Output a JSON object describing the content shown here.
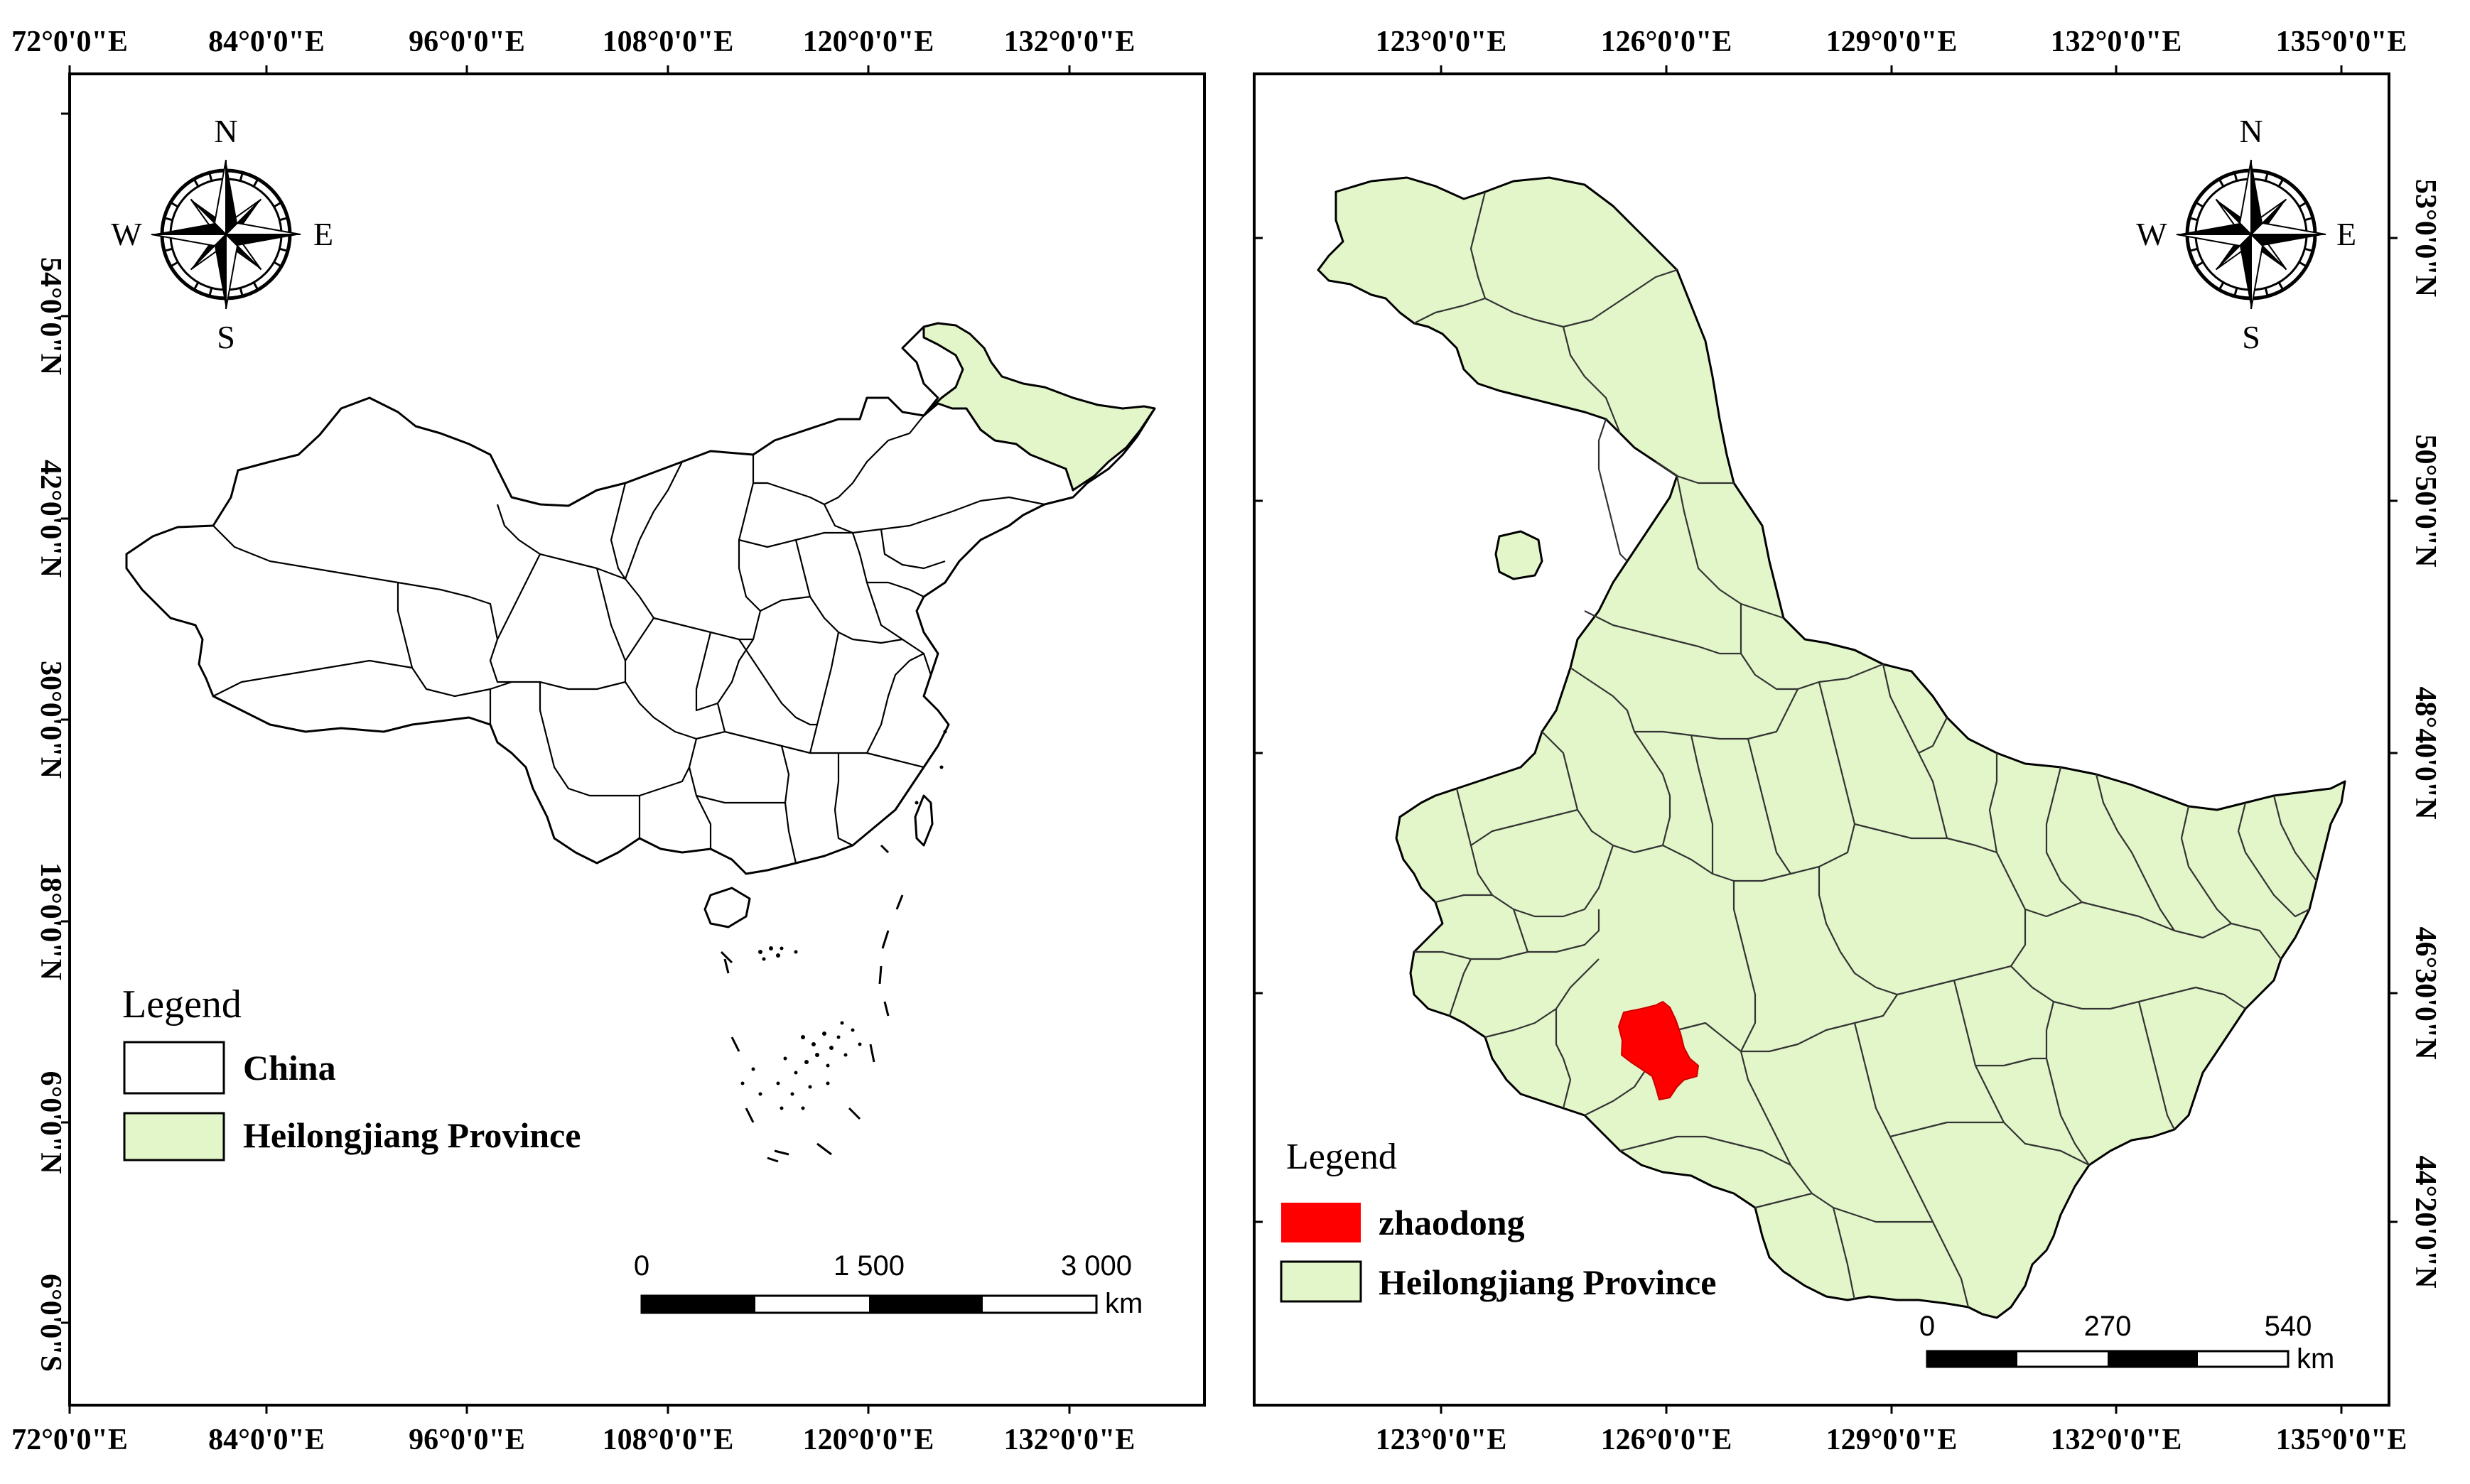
{
  "left_map": {
    "top_lon_labels": [
      "72°0'0\"E",
      "84°0'0\"E",
      "96°0'0\"E",
      "108°0'0\"E",
      "120°0'0\"E",
      "132°0'0\"E"
    ],
    "bottom_lon_labels": [
      "72°0'0\"E",
      "84°0'0\"E",
      "96°0'0\"E",
      "108°0'0\"E",
      "120°0'0\"E",
      "132°0'0\"E"
    ],
    "left_lat_labels": [
      "54°0'0\"N",
      "42°0'0\"N",
      "30°0'0\"N",
      "18°0'0\"N",
      "6°0'0\"N",
      "6°0'0\"S"
    ],
    "compass": {
      "n": "N",
      "s": "S",
      "e": "E",
      "w": "W"
    },
    "legend": {
      "title": "Legend",
      "items": [
        {
          "label": "China",
          "color": "#ffffff"
        },
        {
          "label": "Heilongjiang Province",
          "color": "#e2f6c9"
        }
      ]
    },
    "scale_bar": {
      "ticks": [
        "0",
        "1 500",
        "3 000"
      ],
      "unit": "km"
    }
  },
  "right_map": {
    "top_lon_labels": [
      "123°0'0\"E",
      "126°0'0\"E",
      "129°0'0\"E",
      "132°0'0\"E",
      "135°0'0\"E"
    ],
    "bottom_lon_labels": [
      "123°0'0\"E",
      "126°0'0\"E",
      "129°0'0\"E",
      "132°0'0\"E",
      "135°0'0\"E"
    ],
    "right_lat_labels": [
      "53°0'0\"N",
      "50°50'0\"N",
      "48°40'0\"N",
      "46°30'0\"N",
      "44°20'0\"N"
    ],
    "compass": {
      "n": "N",
      "s": "S",
      "e": "E",
      "w": "W"
    },
    "legend": {
      "title": "Legend",
      "items": [
        {
          "label": "zhaodong",
          "color": "#ff0000"
        },
        {
          "label": "Heilongjiang Province",
          "color": "#e2f6c9"
        }
      ]
    },
    "scale_bar": {
      "ticks": [
        "0",
        "270",
        "540"
      ],
      "unit": "km"
    }
  }
}
